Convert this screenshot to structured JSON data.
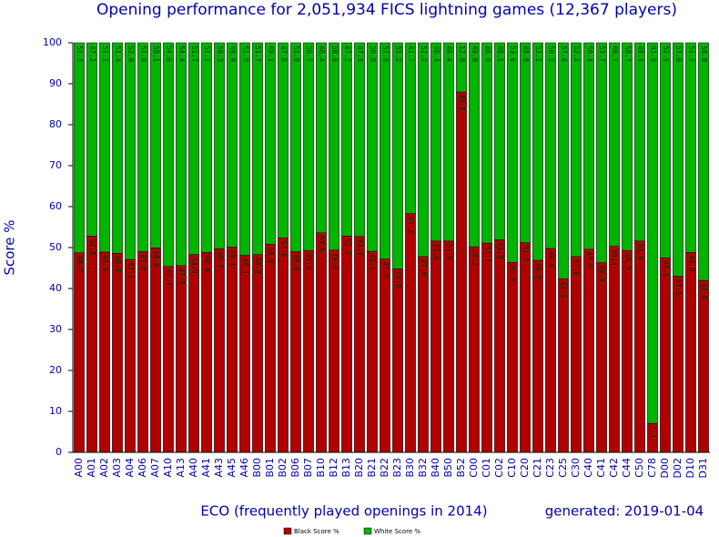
{
  "chart_data": {
    "type": "stacked_bar",
    "title": "Opening performance for 2,051,934 FICS lightning games (12,367 players)",
    "x_label": "ECO (frequently played openings in 2014)",
    "y_label": "Score %",
    "annotation": "generated: 2019-01-04",
    "categories": [
      "A00",
      "A01",
      "A02",
      "A03",
      "A04",
      "A06",
      "A07",
      "A10",
      "A13",
      "A40",
      "A41",
      "A43",
      "A45",
      "A46",
      "B00",
      "B01",
      "B02",
      "B06",
      "B07",
      "B10",
      "B12",
      "B13",
      "B20",
      "B21",
      "B22",
      "B23",
      "B30",
      "B32",
      "B40",
      "B50",
      "B52",
      "C00",
      "C01",
      "C02",
      "C10",
      "C20",
      "C21",
      "C23",
      "C25",
      "C30",
      "C40",
      "C41",
      "C42",
      "C44",
      "C50",
      "C78",
      "D00",
      "D02",
      "D10",
      "D31"
    ],
    "series": [
      {
        "name": "Black Score %",
        "color": "#b00000",
        "values": [
          48.7,
          52.8,
          48.9,
          48.6,
          47.1,
          49.0,
          49.9,
          45.4,
          45.6,
          48.3,
          48.8,
          49.7,
          50.1,
          48.1,
          48.3,
          50.8,
          52.4,
          49.0,
          49.3,
          53.6,
          49.4,
          52.8,
          52.7,
          49.1,
          47.2,
          44.8,
          58.3,
          47.8,
          51.6,
          51.6,
          88.0,
          50.2,
          51.1,
          51.9,
          46.4,
          51.2,
          46.9,
          49.8,
          42.4,
          47.8,
          49.6,
          46.3,
          50.3,
          49.3,
          51.6,
          7.1,
          47.5,
          43.0,
          48.8,
          42.0
        ],
        "value_labels": [
          "48.7",
          "52.8",
          "48.9",
          "48.6",
          "47.1",
          "49.0",
          "49.9",
          "45.4",
          "45.6",
          "48.3",
          "48.8",
          "49.7",
          "50.1",
          "48.1",
          "48.3",
          "50.8",
          "52.4",
          "49.0",
          "49.3",
          "53.6",
          "49.4",
          "52.8",
          "52.7",
          "49.1",
          "47.2",
          "44.8",
          "58.3",
          "47.8",
          "51.6",
          "51.6",
          "88.0",
          "50.2",
          "51.1",
          "51.9",
          "46.4",
          "51.2",
          "46.9",
          "49.8",
          "42.4",
          "47.8",
          "49.6",
          "46.3",
          "50.3",
          "49.3",
          "51.6",
          "7.1",
          "47.5",
          "43.0",
          "48.8",
          "42.0"
        ]
      },
      {
        "name": "White Score %",
        "color": "#00b400",
        "values": [
          51.3,
          47.2,
          51.1,
          51.4,
          52.9,
          51.0,
          50.1,
          54.6,
          54.4,
          51.7,
          51.2,
          50.3,
          49.9,
          51.9,
          51.7,
          49.2,
          47.6,
          51.0,
          50.7,
          46.4,
          50.6,
          47.2,
          47.3,
          50.9,
          52.8,
          55.2,
          41.7,
          52.2,
          48.4,
          48.4,
          12.0,
          49.8,
          48.9,
          48.1,
          53.6,
          48.8,
          53.1,
          50.2,
          57.6,
          52.2,
          50.4,
          53.7,
          49.7,
          50.7,
          48.4,
          92.9,
          52.5,
          57.0,
          51.2,
          58.0
        ],
        "value_labels": [
          "51.3",
          "47.2",
          "51.1",
          "51.4",
          "52.9",
          "51.0",
          "50.1",
          "54.6",
          "54.4",
          "51.7",
          "51.2",
          "50.3",
          "49.9",
          "51.9",
          "51.7",
          "49.2",
          "47.6",
          "51.0",
          "50.7",
          "46.4",
          "50.6",
          "47.2",
          "47.3",
          "50.9",
          "52.8",
          "55.2",
          "41.7",
          "52.2",
          "48.4",
          "48.4",
          "12.0",
          "49.8",
          "48.9",
          "48.1",
          "53.6",
          "48.8",
          "53.1",
          "50.2",
          "57.6",
          "52.2",
          "50.4",
          "53.7",
          "49.7",
          "50.7",
          "48.4",
          "92.9",
          "52.5",
          "57.0",
          "51.2",
          "58.0"
        ]
      }
    ],
    "ylim": [
      0,
      100
    ],
    "yticks": [
      0,
      10,
      20,
      30,
      40,
      50,
      60,
      70,
      80,
      90,
      100
    ],
    "grid": false
  }
}
